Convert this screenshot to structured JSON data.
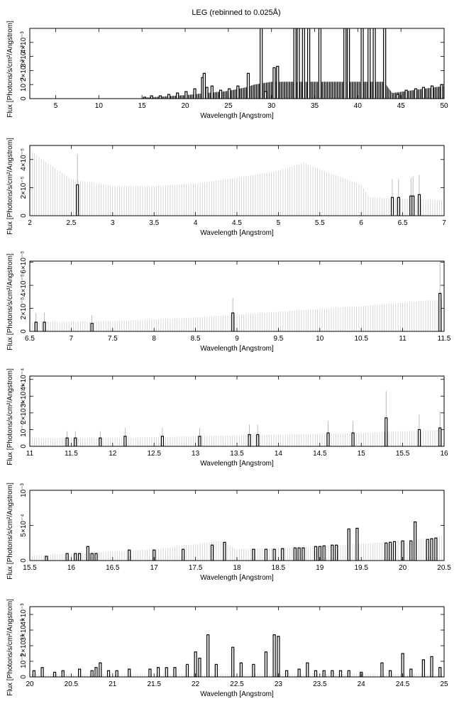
{
  "title": "LEG (rebinned to 0.025Å)",
  "chart_data": [
    {
      "type": "bar",
      "style": "histogram-with-errorbars",
      "xlabel": "Wavelength [Angstrom]",
      "ylabel": "Flux [Photons/s/cm²/Angstrom]",
      "xlim": [
        2,
        50
      ],
      "xticks": [
        "5",
        "10",
        "15",
        "20",
        "25",
        "30",
        "35",
        "40",
        "45",
        "50"
      ],
      "xtick_values": [
        5,
        10,
        15,
        20,
        25,
        30,
        35,
        40,
        45,
        50
      ],
      "ylim": [
        0,
        0.005
      ],
      "yticks": [
        "0",
        "10⁻³",
        "2×10⁻³",
        "3×10⁻³",
        "4×10⁻³"
      ],
      "ytick_values": [
        0,
        0.001,
        0.002,
        0.003,
        0.004
      ],
      "x": [
        15.2,
        16.0,
        17.0,
        18.0,
        19.0,
        20.0,
        21.0,
        21.9,
        22.1,
        22.4,
        23.0,
        24.0,
        25.0,
        26.0,
        27.2,
        28.7,
        29.2,
        30.2,
        30.6,
        32.6,
        33.0,
        33.6,
        34.2,
        35.5,
        38.4,
        38.8,
        40.4,
        41.2,
        41.8,
        43.0,
        44.5,
        45.5,
        46.6,
        47.5,
        48.5,
        49.6
      ],
      "values": [
        0.0001,
        0.0002,
        0.0002,
        0.0003,
        0.0004,
        0.0005,
        0.0007,
        0.0015,
        0.0018,
        0.0008,
        0.0009,
        0.0006,
        0.0007,
        0.0009,
        0.0018,
        0.005,
        0.0005,
        0.0022,
        0.0023,
        0.005,
        0.005,
        0.005,
        0.005,
        0.005,
        0.005,
        0.005,
        0.005,
        0.005,
        0.005,
        0.005,
        0.0003,
        0.0006,
        0.0007,
        0.0008,
        0.0009,
        0.001
      ],
      "continuum": [
        [
          15,
          6e-05
        ],
        [
          20,
          0.00025
        ],
        [
          25,
          0.00055
        ],
        [
          27,
          0.0008
        ],
        [
          28,
          0.001
        ],
        [
          30,
          0.0012
        ],
        [
          43,
          0.0012
        ],
        [
          44,
          0.0004
        ],
        [
          50,
          0.0009
        ]
      ]
    },
    {
      "type": "bar",
      "style": "histogram-with-errorbars",
      "xlabel": "Wavelength [Angstrom]",
      "ylabel": "Flux [Photons/s/cm²/Angstrom]",
      "xlim": [
        2,
        7
      ],
      "xticks": [
        "2",
        "2.5",
        "3",
        "3.5",
        "4",
        "4.5",
        "5",
        "5.5",
        "6",
        "6.5",
        "7"
      ],
      "xtick_values": [
        2,
        2.5,
        3,
        3.5,
        4,
        4.5,
        5,
        5.5,
        6,
        6.5,
        7
      ],
      "ylim": [
        0,
        5e-05
      ],
      "yticks": [
        "0",
        "2×10⁻⁵",
        "4×10⁻⁵"
      ],
      "ytick_values": [
        0,
        2e-05,
        4e-05
      ],
      "x": [
        2.575,
        6.375,
        6.45,
        6.6,
        6.625,
        6.7
      ],
      "values": [
        2.2e-05,
        1.3e-05,
        1.3e-05,
        1.4e-05,
        1.4e-05,
        1.5e-05
      ],
      "errors": [
        2.2e-05,
        1.3e-05,
        1.3e-05,
        1.3e-05,
        1.4e-05,
        1.4e-05
      ],
      "envelope": [
        [
          2,
          4.7e-05
        ],
        [
          2.2,
          3.8e-05
        ],
        [
          2.5,
          2.6e-05
        ],
        [
          3,
          2.1e-05
        ],
        [
          3.5,
          2.1e-05
        ],
        [
          4,
          2.3e-05
        ],
        [
          4.5,
          2.7e-05
        ],
        [
          5,
          3.2e-05
        ],
        [
          5.3,
          3.8e-05
        ],
        [
          5.55,
          3.2e-05
        ],
        [
          6,
          2.2e-05
        ],
        [
          6.1,
          1.3e-05
        ],
        [
          7,
          1.1e-05
        ]
      ]
    },
    {
      "type": "bar",
      "style": "histogram-with-errorbars",
      "xlabel": "Wavelength [Angstrom]",
      "ylabel": "Flux [Photons/s/cm²/Angstrom]",
      "xlim": [
        6.5,
        11.5
      ],
      "xticks": [
        "6.5",
        "7",
        "7.5",
        "8",
        "8.5",
        "9",
        "9.5",
        "10",
        "10.5",
        "11",
        "11.5"
      ],
      "xtick_values": [
        6.5,
        7,
        7.5,
        8,
        8.5,
        9,
        9.5,
        10,
        10.5,
        11,
        11.5
      ],
      "ylim": [
        0,
        6.1e-05
      ],
      "yticks": [
        "0",
        "2×10⁻⁵",
        "4×10⁻⁵",
        "6×10⁻⁵"
      ],
      "ytick_values": [
        0,
        2e-05,
        4e-05,
        6e-05
      ],
      "x": [
        6.575,
        6.675,
        7.25,
        8.95,
        11.45
      ],
      "values": [
        8e-06,
        8e-06,
        7e-06,
        1.6e-05,
        3.3e-05
      ],
      "errors": [
        8e-06,
        8e-06,
        7e-06,
        1.3e-05,
        2.8e-05
      ],
      "envelope": [
        [
          6.5,
          8e-06
        ],
        [
          7.5,
          9e-06
        ],
        [
          8.5,
          1.2e-05
        ],
        [
          9.5,
          1.7e-05
        ],
        [
          10.5,
          2.2e-05
        ],
        [
          11.5,
          2.8e-05
        ]
      ]
    },
    {
      "type": "bar",
      "style": "histogram-with-errorbars",
      "xlabel": "Wavelength [Angstrom]",
      "ylabel": "Flux [Photons/s/cm²/Angstrom]",
      "xlim": [
        11,
        16
      ],
      "xticks": [
        "11",
        "11.5",
        "12",
        "12.5",
        "13",
        "13.5",
        "14",
        "14.5",
        "15",
        "15.5",
        "16"
      ],
      "xtick_values": [
        11,
        11.5,
        12,
        12.5,
        13,
        13.5,
        14,
        14.5,
        15,
        15.5,
        16
      ],
      "ylim": [
        0,
        0.00042
      ],
      "yticks": [
        "0",
        "10⁻⁴",
        "2×10⁻⁴",
        "3×10⁻⁴",
        "4×10⁻⁴"
      ],
      "ytick_values": [
        0,
        0.0001,
        0.0002,
        0.0003,
        0.0004
      ],
      "x": [
        11.45,
        11.55,
        11.85,
        12.15,
        12.6,
        13.05,
        13.65,
        13.75,
        14.6,
        14.9,
        15.3,
        15.3,
        15.7,
        15.95
      ],
      "values": [
        5e-05,
        5e-05,
        5e-05,
        6e-05,
        6e-05,
        6e-05,
        7e-05,
        7e-05,
        8e-05,
        8e-05,
        9e-05,
        0.00017,
        0.0001,
        0.00011
      ],
      "errors": [
        4e-05,
        4e-05,
        4e-05,
        5e-05,
        5e-05,
        5e-05,
        6e-05,
        6e-05,
        7e-05,
        7e-05,
        8e-05,
        0.00016,
        9e-05,
        0.0001
      ],
      "envelope": [
        [
          11,
          5e-05
        ],
        [
          12,
          5e-05
        ],
        [
          13,
          6e-05
        ],
        [
          14,
          7e-05
        ],
        [
          15,
          8e-05
        ],
        [
          16,
          0.0001
        ]
      ]
    },
    {
      "type": "bar",
      "style": "histogram-with-errorbars",
      "xlabel": "Wavelength [Angstrom]",
      "ylabel": "Flux [Photons/s/cm²/Angstrom]",
      "xlim": [
        15.5,
        20.5
      ],
      "xticks": [
        "15.5",
        "16",
        "16.5",
        "17",
        "17.5",
        "18",
        "18.5",
        "19",
        "19.5",
        "20",
        "20.5"
      ],
      "xtick_values": [
        15.5,
        16,
        16.5,
        17,
        17.5,
        18,
        18.5,
        19,
        19.5,
        20,
        20.5
      ],
      "ylim": [
        0,
        0.001
      ],
      "yticks": [
        "0",
        "5×10⁻⁴",
        "10⁻³"
      ],
      "ytick_values": [
        0,
        0.0005,
        0.001
      ],
      "x": [
        15.7,
        15.95,
        16.05,
        16.1,
        16.2,
        16.25,
        16.3,
        16.7,
        17.0,
        17.35,
        17.7,
        17.85,
        18.2,
        18.35,
        18.45,
        18.55,
        18.7,
        18.75,
        18.8,
        18.95,
        19.0,
        19.05,
        19.15,
        19.2,
        19.35,
        19.45,
        19.8,
        19.85,
        19.9,
        20.0,
        20.1,
        20.15,
        20.3,
        20.35,
        20.4
      ],
      "values": [
        6e-05,
        0.0001,
        0.0001,
        0.0001,
        0.0002,
        0.0001,
        0.0001,
        0.00015,
        0.00015,
        0.00016,
        0.00022,
        0.00026,
        0.00016,
        0.00016,
        0.00016,
        0.00017,
        0.00018,
        0.00018,
        0.00018,
        0.0002,
        0.0002,
        0.00021,
        0.00022,
        0.00022,
        0.00045,
        0.00046,
        0.00025,
        0.00026,
        0.00027,
        0.00028,
        0.00028,
        0.00055,
        0.0003,
        0.00031,
        0.00032
      ],
      "envelope": [
        [
          15.5,
          7e-05
        ],
        [
          16,
          0.0001
        ],
        [
          17,
          0.00016
        ],
        [
          17.8,
          0.00028
        ],
        [
          18,
          0.00016
        ],
        [
          19,
          0.0002
        ],
        [
          20,
          0.00028
        ],
        [
          20.5,
          0.00035
        ]
      ]
    },
    {
      "type": "bar",
      "style": "histogram-with-errorbars",
      "xlabel": "Wavelength [Angstrom]",
      "ylabel": "Flux [Photons/s/cm²/Angstrom]",
      "xlim": [
        20,
        25
      ],
      "xticks": [
        "20",
        "20.5",
        "21",
        "21.5",
        "22",
        "22.5",
        "23",
        "23.5",
        "24",
        "24.5",
        "25"
      ],
      "xtick_values": [
        20,
        20.5,
        21,
        21.5,
        22,
        22.5,
        23,
        23.5,
        24,
        24.5,
        25
      ],
      "ylim": [
        0,
        0.0045
      ],
      "yticks": [
        "0",
        "10⁻³",
        "2×10⁻³",
        "3×10⁻³",
        "4×10⁻³"
      ],
      "ytick_values": [
        0,
        0.001,
        0.002,
        0.003,
        0.004
      ],
      "x": [
        20.05,
        20.15,
        20.3,
        20.4,
        20.6,
        20.75,
        20.8,
        20.85,
        20.95,
        21.05,
        21.2,
        21.45,
        21.55,
        21.65,
        21.75,
        21.9,
        22.0,
        22.05,
        22.15,
        22.25,
        22.45,
        22.55,
        22.7,
        22.85,
        22.95,
        23.0,
        23.1,
        23.25,
        23.35,
        23.45,
        23.55,
        23.65,
        23.75,
        23.85,
        24.0,
        24.25,
        24.35,
        24.5,
        24.6,
        24.75,
        24.85,
        24.95
      ],
      "values": [
        0.0004,
        0.0006,
        0.0003,
        0.0004,
        0.0005,
        0.0004,
        0.0006,
        0.0009,
        0.0004,
        0.0004,
        0.0005,
        0.0005,
        0.0006,
        0.0006,
        0.0006,
        0.0008,
        0.0016,
        0.0012,
        0.0027,
        0.0008,
        0.0019,
        0.0009,
        0.0008,
        0.0016,
        0.0027,
        0.0026,
        0.0004,
        0.0005,
        0.0009,
        0.0004,
        0.0004,
        0.0004,
        0.0004,
        0.0004,
        0.0003,
        0.0009,
        0.0004,
        0.0015,
        0.0005,
        0.0011,
        0.0013,
        0.0006
      ],
      "envelope": [
        [
          20,
          0.0002
        ],
        [
          25,
          0.0002
        ]
      ]
    }
  ]
}
